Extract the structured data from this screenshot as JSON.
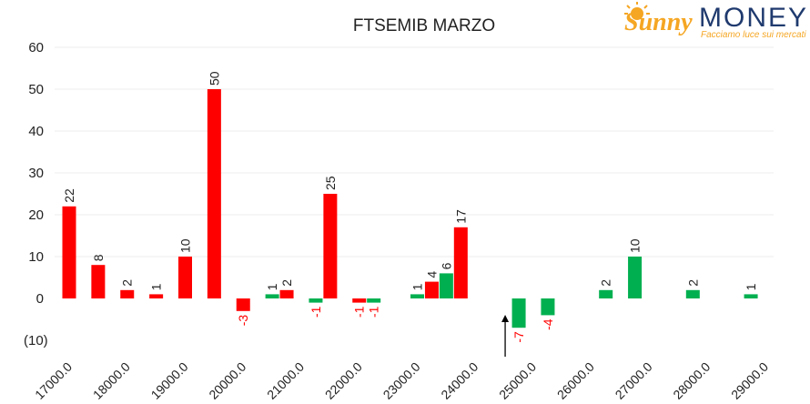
{
  "logo": {
    "word1": "Sunny",
    "word2": "MONEY",
    "tagline": "Facciamo luce sui mercati"
  },
  "colors": {
    "call": "#ff0000",
    "put": "#00b050",
    "negative_label": "#ff0000",
    "positive_label": "#222222",
    "logo_orange": "#f5a623",
    "logo_navy": "#1f3a6e"
  },
  "chart_data": {
    "type": "bar",
    "title": "FTSEMIB MARZO",
    "xlabel": "",
    "ylabel": "",
    "ylim": [
      -10,
      60
    ],
    "yticks": [
      {
        "value": 60,
        "label": "60"
      },
      {
        "value": 50,
        "label": "50"
      },
      {
        "value": 40,
        "label": "40"
      },
      {
        "value": 30,
        "label": "30"
      },
      {
        "value": 20,
        "label": "20"
      },
      {
        "value": 10,
        "label": "10"
      },
      {
        "value": 0,
        "label": "0"
      },
      {
        "value": -10,
        "label": "(10)"
      }
    ],
    "xlim": [
      17000,
      29000
    ],
    "xticks": [
      "17000.0",
      "18000.0",
      "19000.0",
      "20000.0",
      "21000.0",
      "22000.0",
      "23000.0",
      "24000.0",
      "25000.0",
      "26000.0",
      "27000.0",
      "28000.0",
      "29000.0"
    ],
    "grid": true,
    "arrow_at": 24750,
    "series": [
      {
        "color_key": "call",
        "points": [
          {
            "x": 17000,
            "value": 22
          },
          {
            "x": 17500,
            "value": 8
          },
          {
            "x": 18000,
            "value": 2
          },
          {
            "x": 18500,
            "value": 1
          },
          {
            "x": 19000,
            "value": 10
          },
          {
            "x": 19500,
            "value": 50
          },
          {
            "x": 20000,
            "value": -3
          },
          {
            "x": 20750,
            "value": 2
          },
          {
            "x": 21500,
            "value": 25
          },
          {
            "x": 22000,
            "value": -1
          },
          {
            "x": 23250,
            "value": 4
          },
          {
            "x": 23750,
            "value": 17
          }
        ]
      },
      {
        "color_key": "put",
        "points": [
          {
            "x": 20500,
            "value": 1
          },
          {
            "x": 21250,
            "value": -1
          },
          {
            "x": 22250,
            "value": -1
          },
          {
            "x": 23000,
            "value": 1
          },
          {
            "x": 23500,
            "value": 6
          },
          {
            "x": 24750,
            "value": -7
          },
          {
            "x": 25250,
            "value": -4
          },
          {
            "x": 26250,
            "value": 2
          },
          {
            "x": 26750,
            "value": 10
          },
          {
            "x": 27750,
            "value": 2
          },
          {
            "x": 28750,
            "value": 1
          }
        ]
      }
    ]
  }
}
